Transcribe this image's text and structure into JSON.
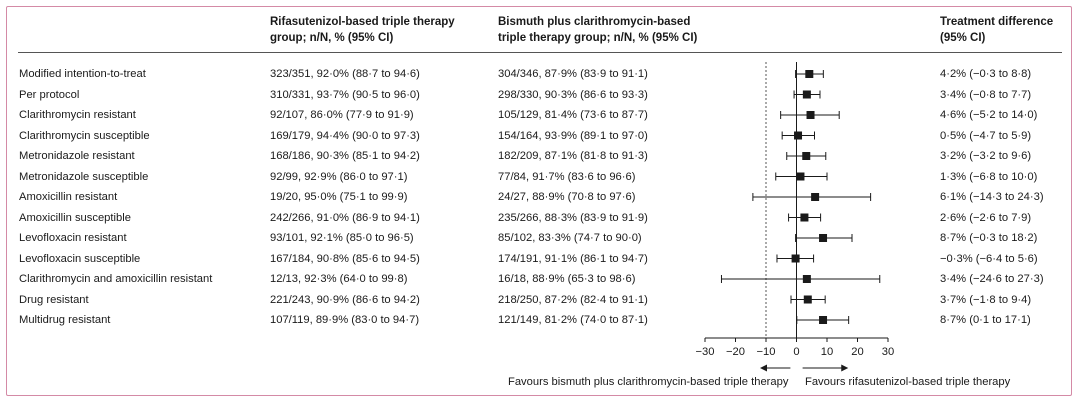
{
  "headers": {
    "rifasutenizol_line1": "Rifasutenizol-based triple therapy",
    "rifasutenizol_line2": "group; n/N, % (95% CI)",
    "bismuth_line1": "Bismuth plus clarithromycin-based",
    "bismuth_line2": "triple therapy group; n/N, % (95% CI)",
    "difference_line1": "Treatment difference",
    "difference_line2": "(95% CI)"
  },
  "legend": {
    "left": "Favours bismuth plus clarithromycin-based triple therapy",
    "right": "Favours rifasutenizol-based triple therapy"
  },
  "colors": {
    "frame": "#d48aa6",
    "marker": "#1a1a1a",
    "text": "#1a1a1a"
  },
  "chart_data": {
    "type": "forest",
    "xlim": [
      -30,
      30
    ],
    "xticks": [
      -30,
      -20,
      -10,
      0,
      10,
      20,
      30
    ],
    "xtick_labels": [
      "−30",
      "−20",
      "−10",
      "0",
      "10",
      "20",
      "30"
    ],
    "reference_line": 0,
    "margin_line": -10,
    "rows": [
      {
        "label": "Modified intention-to-treat",
        "rifa": "323/351, 92·0% (88·7 to 94·6)",
        "bism": "304/346, 87·9% (83·9 to 91·1)",
        "diff_text": "4·2% (−0·3 to 8·8)",
        "estimate": 4.2,
        "lower": -0.3,
        "upper": 8.8
      },
      {
        "label": "Per protocol",
        "rifa": "310/331, 93·7% (90·5 to 96·0)",
        "bism": "298/330, 90·3% (86·6 to 93·3)",
        "diff_text": "3·4% (−0·8 to 7·7)",
        "estimate": 3.4,
        "lower": -0.8,
        "upper": 7.7
      },
      {
        "label": "Clarithromycin resistant",
        "rifa": "92/107, 86·0% (77·9 to 91·9)",
        "bism": "105/129, 81·4% (73·6 to 87·7)",
        "diff_text": "4·6% (−5·2 to 14·0)",
        "estimate": 4.6,
        "lower": -5.2,
        "upper": 14.0
      },
      {
        "label": "Clarithromycin susceptible",
        "rifa": "169/179, 94·4% (90·0 to 97·3)",
        "bism": "154/164, 93·9% (89·1 to 97·0)",
        "diff_text": "0·5% (−4·7 to 5·9)",
        "estimate": 0.5,
        "lower": -4.7,
        "upper": 5.9
      },
      {
        "label": "Metronidazole resistant",
        "rifa": "168/186, 90·3% (85·1 to 94·2)",
        "bism": "182/209, 87·1% (81·8 to 91·3)",
        "diff_text": "3·2% (−3·2 to 9·6)",
        "estimate": 3.2,
        "lower": -3.2,
        "upper": 9.6
      },
      {
        "label": "Metronidazole susceptible",
        "rifa": "92/99, 92·9% (86·0 to 97·1)",
        "bism": "77/84, 91·7% (83·6 to 96·6)",
        "diff_text": "1·3% (−6·8 to 10·0)",
        "estimate": 1.3,
        "lower": -6.8,
        "upper": 10.0
      },
      {
        "label": "Amoxicillin resistant",
        "rifa": "19/20, 95·0% (75·1 to 99·9)",
        "bism": "24/27, 88·9% (70·8 to 97·6)",
        "diff_text": "6·1% (−14·3 to 24·3)",
        "estimate": 6.1,
        "lower": -14.3,
        "upper": 24.3
      },
      {
        "label": "Amoxicillin susceptible",
        "rifa": "242/266, 91·0% (86·9 to 94·1)",
        "bism": "235/266, 88·3% (83·9 to 91·9)",
        "diff_text": "2·6% (−2·6 to 7·9)",
        "estimate": 2.6,
        "lower": -2.6,
        "upper": 7.9
      },
      {
        "label": "Levofloxacin resistant",
        "rifa": "93/101, 92·1% (85·0 to 96·5)",
        "bism": "85/102, 83·3% (74·7 to 90·0)",
        "diff_text": "8·7% (−0·3 to 18·2)",
        "estimate": 8.7,
        "lower": -0.3,
        "upper": 18.2
      },
      {
        "label": "Levofloxacin susceptible",
        "rifa": "167/184, 90·8% (85·6 to 94·5)",
        "bism": "174/191, 91·1% (86·1 to 94·7)",
        "diff_text": "−0·3% (−6·4 to 5·6)",
        "estimate": -0.3,
        "lower": -6.4,
        "upper": 5.6
      },
      {
        "label": "Clarithromycin and amoxicillin resistant",
        "rifa": "12/13, 92·3% (64·0 to 99·8)",
        "bism": "16/18, 88·9% (65·3 to 98·6)",
        "diff_text": "3·4% (−24·6 to 27·3)",
        "estimate": 3.4,
        "lower": -24.6,
        "upper": 27.3
      },
      {
        "label": "Drug resistant",
        "rifa": "221/243, 90·9% (86·6 to 94·2)",
        "bism": "218/250, 87·2% (82·4 to 91·1)",
        "diff_text": "3·7% (−1·8 to 9·4)",
        "estimate": 3.7,
        "lower": -1.8,
        "upper": 9.4
      },
      {
        "label": "Multidrug resistant",
        "rifa": "107/119, 89·9% (83·0 to 94·7)",
        "bism": "121/149, 81·2% (74·0 to 87·1)",
        "diff_text": "8·7% (0·1 to 17·1)",
        "estimate": 8.7,
        "lower": 0.1,
        "upper": 17.1
      }
    ]
  }
}
